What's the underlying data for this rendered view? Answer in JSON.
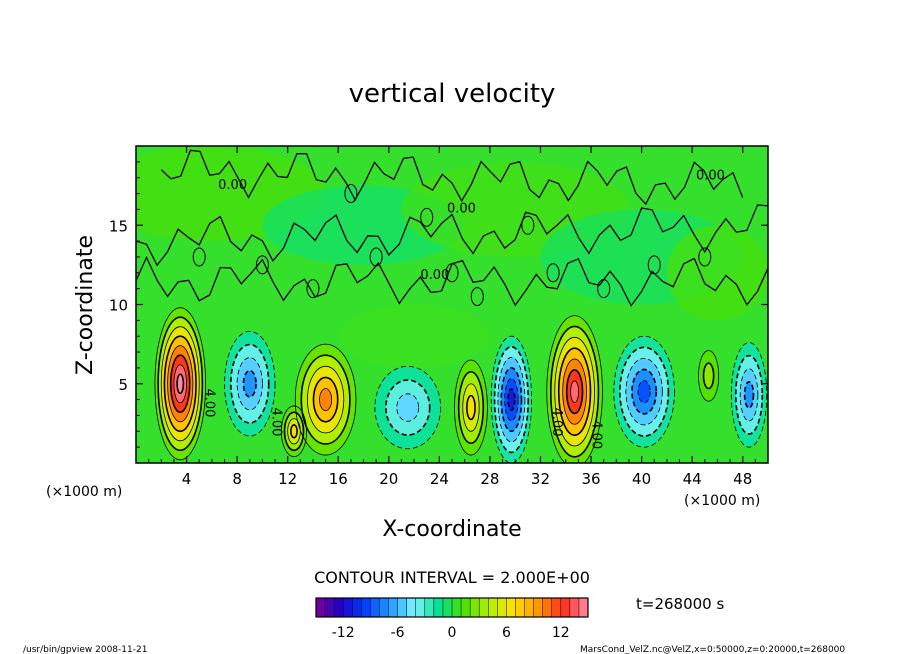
{
  "chart_data": {
    "type": "heatmap",
    "title": "vertical velocity",
    "xlabel": "X-coordinate",
    "ylabel": "Z-coordinate",
    "x_unit": "(×1000 m)",
    "z_unit": "(×1000 m)",
    "xlim": [
      0,
      50
    ],
    "ylim": [
      0,
      20
    ],
    "x_ticks": [
      4,
      8,
      12,
      16,
      20,
      24,
      28,
      32,
      36,
      40,
      44,
      48
    ],
    "y_ticks": [
      5,
      10,
      15
    ],
    "contour_interval_text": "CONTOUR INTERVAL = 2.000E+00",
    "contour_labels": [
      "0.00",
      "0.00",
      "0.00",
      "4.00",
      "4.00",
      "4.00",
      "4.00",
      "0.00"
    ],
    "colorbar": {
      "min": -15,
      "max": 15,
      "ticks": [
        -12,
        -6,
        0,
        6,
        12
      ],
      "colors": [
        "#7d009a",
        "#1f00c8",
        "#0040ff",
        "#1f9cff",
        "#7ff5ff",
        "#00e08c",
        "#4ee000",
        "#b4f000",
        "#ffe100",
        "#ff9600",
        "#ff2d1e",
        "#ff8ca5"
      ]
    },
    "cells": [
      {
        "x": 3.5,
        "z": 5.0,
        "rx": 2.0,
        "rz": 4.8,
        "w": 16
      },
      {
        "x": 9.0,
        "z": 5.0,
        "rx": 2.0,
        "rz": 3.3,
        "w": -7
      },
      {
        "x": 15.0,
        "z": 4.0,
        "rx": 2.4,
        "rz": 3.5,
        "w": 10
      },
      {
        "x": 12.5,
        "z": 2.0,
        "rx": 1.0,
        "rz": 1.6,
        "w": 7
      },
      {
        "x": 21.5,
        "z": 3.5,
        "rx": 2.6,
        "rz": 2.6,
        "w": -5
      },
      {
        "x": 26.5,
        "z": 3.5,
        "rx": 1.3,
        "rz": 3.0,
        "w": 7
      },
      {
        "x": 29.7,
        "z": 4.0,
        "rx": 1.6,
        "rz": 4.0,
        "w": -11
      },
      {
        "x": 34.7,
        "z": 4.5,
        "rx": 2.2,
        "rz": 4.8,
        "w": 14
      },
      {
        "x": 40.2,
        "z": 4.5,
        "rx": 2.4,
        "rz": 3.5,
        "w": -9
      },
      {
        "x": 45.3,
        "z": 5.5,
        "rx": 0.8,
        "rz": 1.6,
        "w": 3
      },
      {
        "x": 48.5,
        "z": 4.3,
        "rx": 1.4,
        "rz": 3.3,
        "w": -7
      }
    ],
    "legend_time": "t=268000 s"
  },
  "footer": {
    "left": "/usr/bin/gpview   2008-11-21",
    "right": "MarsCond_VelZ.nc@VelZ,x=0:50000,z=0:20000,t=268000"
  }
}
